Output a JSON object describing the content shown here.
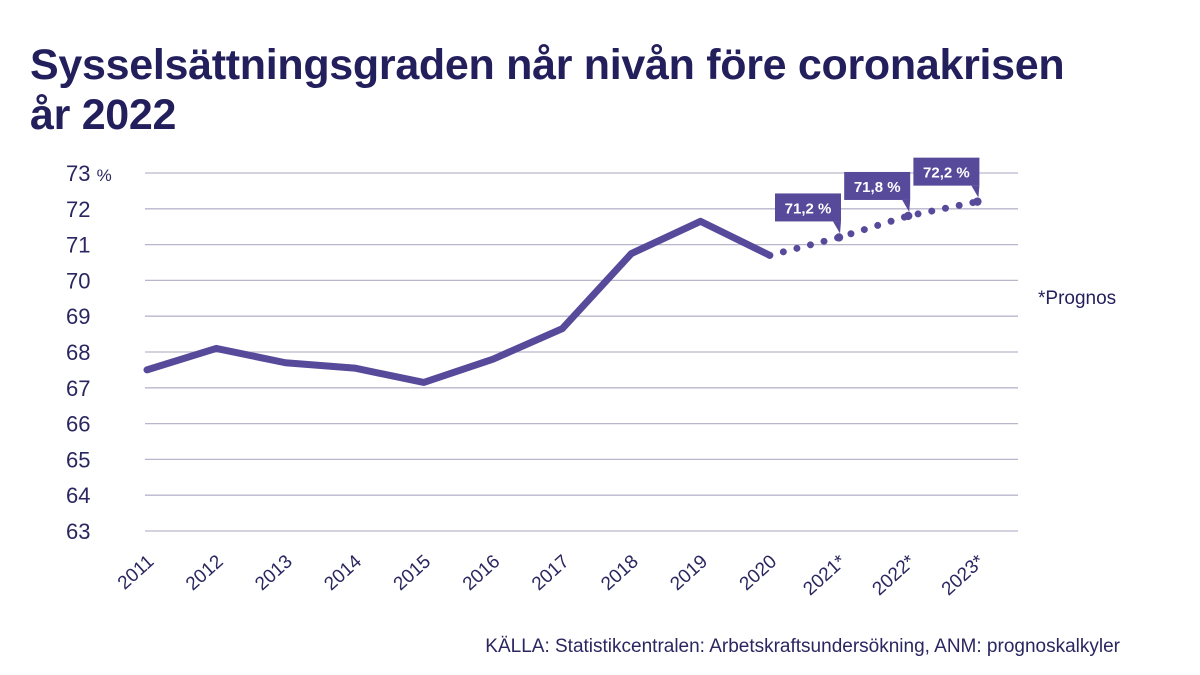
{
  "title_line1": "Sysselsättningsgraden når nivån före coronakrisen",
  "title_line2": "år 2022",
  "note": "*Prognos",
  "source": "KÄLLA: Statistikcentralen: Arbetskraftsundersökning, ANM: prognoskalkyler",
  "colors": {
    "line": "#574a9b",
    "callout": "#574a9b",
    "text": "#231f5c",
    "grid": "#b9b6cc"
  },
  "chart_data": {
    "type": "line",
    "title": "Sysselsättningsgraden når nivån före coronakrisen år 2022",
    "xlabel": "",
    "ylabel": "",
    "ylim": [
      63,
      73
    ],
    "y_ticks": [
      73,
      72,
      71,
      70,
      69,
      68,
      67,
      66,
      65,
      64,
      63
    ],
    "y_top_unit": "%",
    "grid": true,
    "categories": [
      "2011",
      "2012",
      "2013",
      "2014",
      "2015",
      "2016",
      "2017",
      "2018",
      "2019",
      "2020",
      "2021*",
      "2022*",
      "2023*"
    ],
    "series": [
      {
        "values": [
          67.5,
          68.1,
          67.7,
          67.55,
          67.15,
          67.8,
          68.65,
          70.75,
          71.65,
          70.7,
          null,
          null,
          null
        ]
      },
      {
        "values": [
          null,
          null,
          null,
          null,
          null,
          null,
          null,
          null,
          null,
          70.7,
          71.2,
          71.8,
          72.2
        ]
      }
    ],
    "annotations": [
      {
        "category": "2021*",
        "value": 71.2,
        "label": "71,2 %"
      },
      {
        "category": "2022*",
        "value": 71.8,
        "label": "71,8 %"
      },
      {
        "category": "2023*",
        "value": 72.2,
        "label": "72,2 %"
      }
    ]
  }
}
